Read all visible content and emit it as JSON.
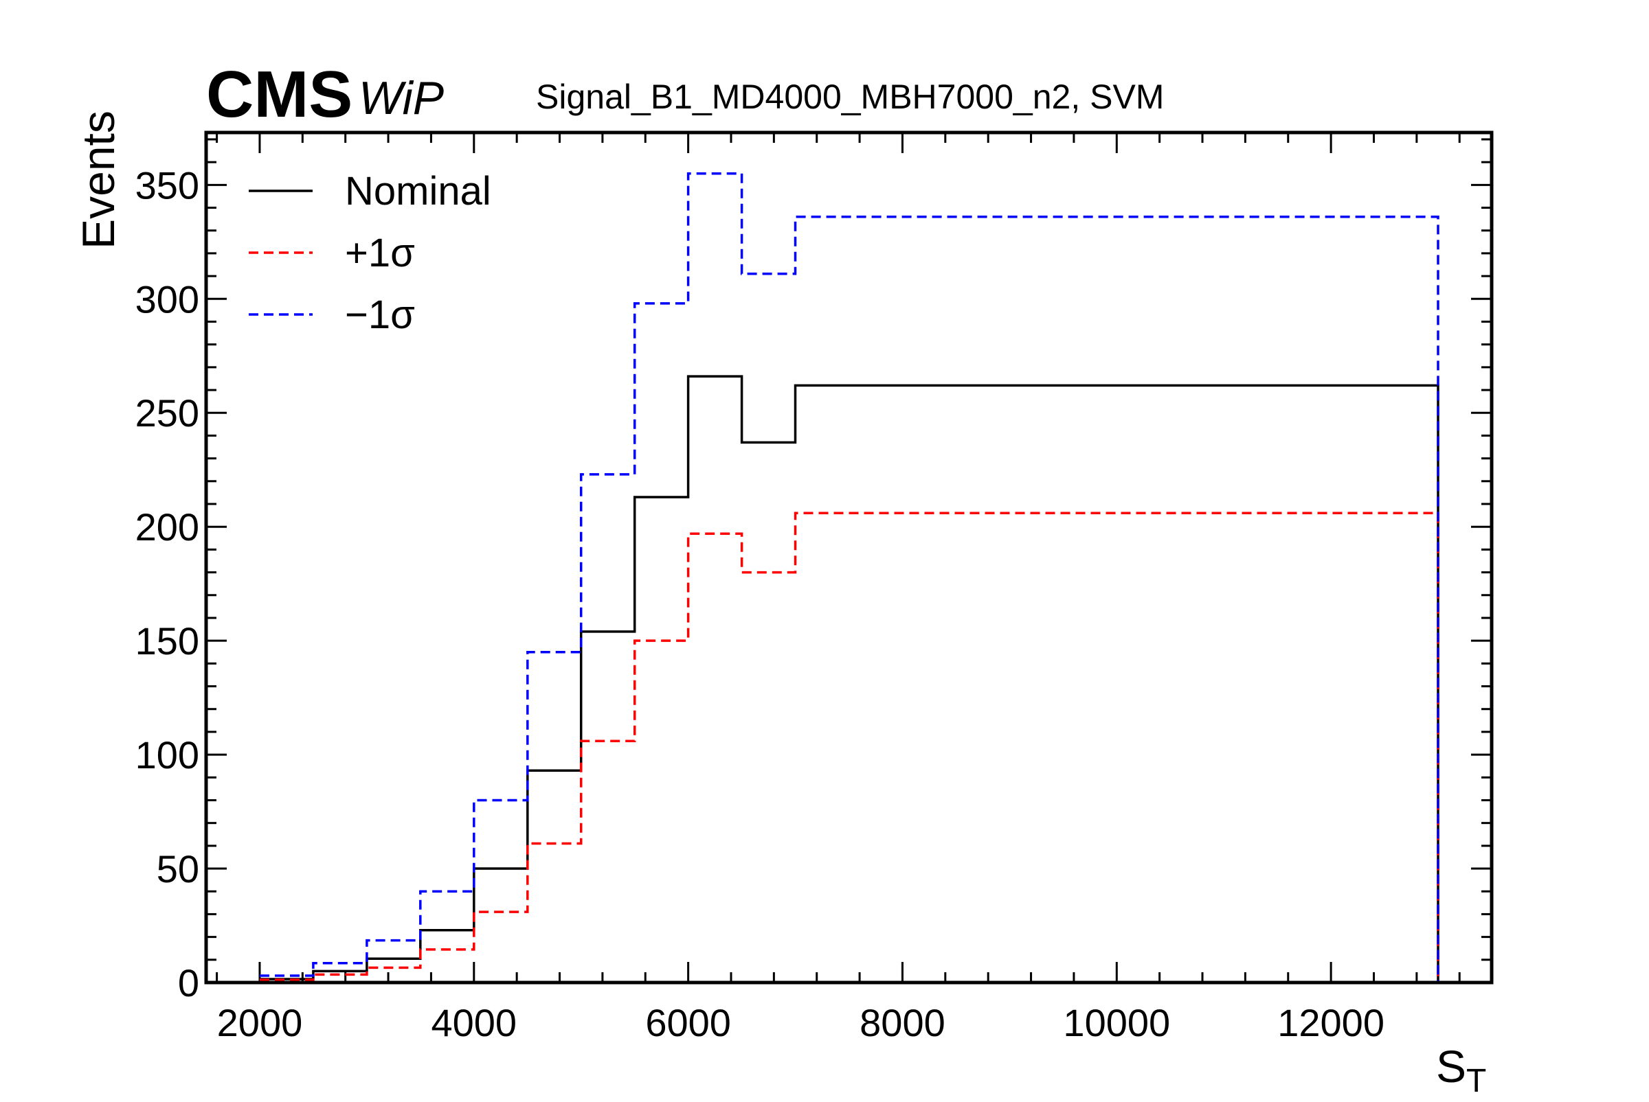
{
  "header": {
    "experiment": "CMS",
    "status": "WiP",
    "sample": "Signal_B1_MD4000_MBH7000_n2, SVM"
  },
  "chart_data": {
    "type": "line",
    "step": true,
    "bin_edges": [
      2000,
      2500,
      3000,
      3500,
      4000,
      4500,
      5000,
      5500,
      6000,
      6500,
      7000,
      13000
    ],
    "series": [
      {
        "name": "Nominal",
        "color": "#000000",
        "style": "solid",
        "values": [
          1.5,
          5,
          10.5,
          23,
          50,
          93,
          154,
          213,
          266,
          237,
          262
        ]
      },
      {
        "name": "+1σ",
        "color": "#ff0000",
        "style": "dashed",
        "values": [
          1.2,
          3.5,
          6.5,
          14.5,
          31,
          61,
          106,
          150,
          197,
          180,
          206
        ]
      },
      {
        "name": "−1σ",
        "color": "#0000ff",
        "style": "dashed",
        "values": [
          3,
          8.5,
          18.5,
          40,
          80,
          145,
          223,
          298,
          355,
          311,
          336
        ]
      }
    ],
    "xlabel": "S",
    "xlabel_subscript": "T",
    "ylabel": "Events",
    "xlim": [
      1500,
      13500
    ],
    "ylim": [
      0,
      373
    ],
    "x_ticks": [
      2000,
      4000,
      6000,
      8000,
      10000,
      12000
    ],
    "y_ticks": [
      0,
      50,
      100,
      150,
      200,
      250,
      300,
      350
    ],
    "legend_position": "top-left",
    "grid": false
  }
}
